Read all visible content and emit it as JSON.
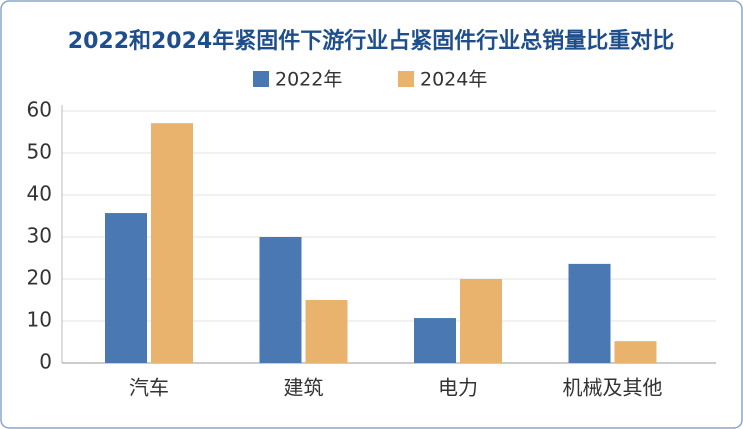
{
  "chart_data": {
    "type": "bar",
    "title": "2022和2024年紧固件下游行业占紧固件行业总销量比重对比",
    "categories": [
      "汽车",
      "建筑",
      "电力",
      "机械及其他"
    ],
    "series": [
      {
        "name": "2022年",
        "color": "#4a78b3",
        "values": [
          35.7,
          30,
          10.7,
          23.6
        ]
      },
      {
        "name": "2024年",
        "color": "#e9b36d",
        "values": [
          57.1,
          15,
          20,
          5.2
        ]
      }
    ],
    "ylim": [
      0,
      60
    ],
    "yticks": [
      0,
      10,
      20,
      30,
      40,
      50,
      60
    ],
    "grid": true,
    "legend": "top"
  }
}
